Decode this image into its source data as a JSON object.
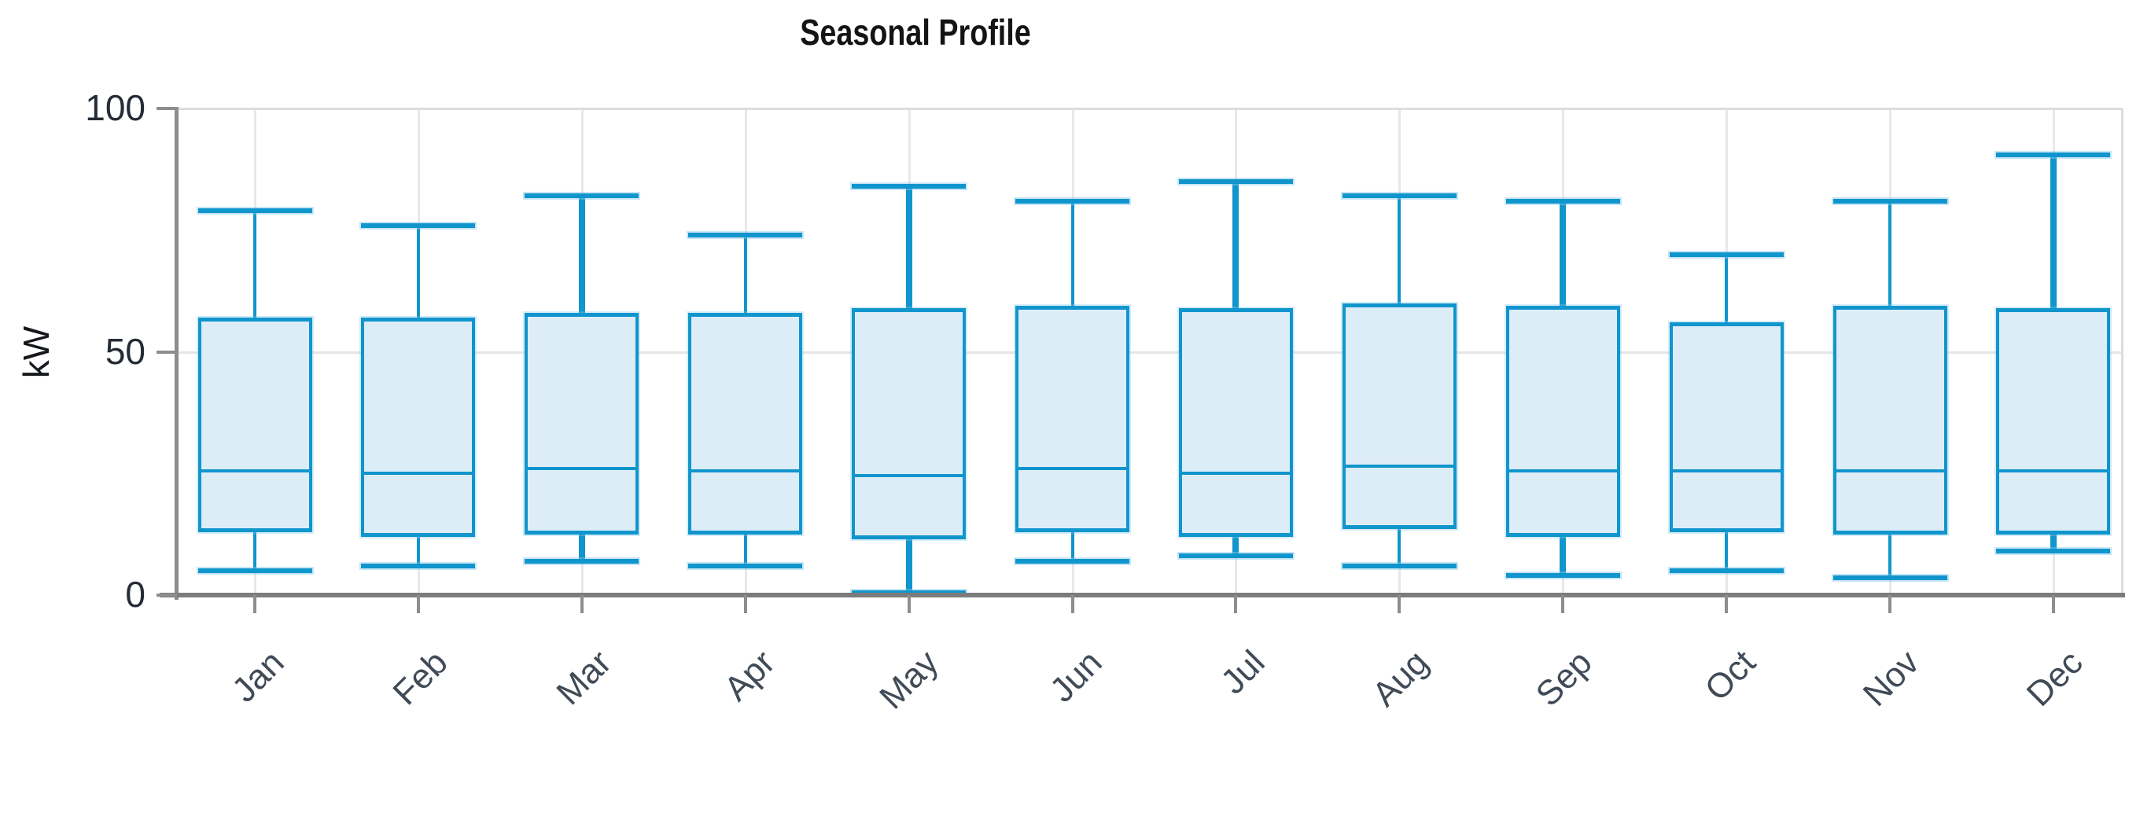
{
  "chart_data": {
    "type": "boxplot",
    "title": "Seasonal Profile",
    "ylabel": "kW",
    "xlabel": "",
    "ylim": [
      0,
      100
    ],
    "y_ticks": [
      0,
      50,
      100
    ],
    "grid": true,
    "legend": "none",
    "categories": [
      "Jan",
      "Feb",
      "Mar",
      "Apr",
      "May",
      "Jun",
      "Jul",
      "Aug",
      "Sep",
      "Oct",
      "Nov",
      "Dec"
    ],
    "boxes": [
      {
        "label": "Jan",
        "min": 5,
        "q1": 13,
        "median": 25.5,
        "q3": 57,
        "max": 79,
        "thick_whisker": false
      },
      {
        "label": "Feb",
        "min": 6,
        "q1": 12,
        "median": 25,
        "q3": 57,
        "max": 76,
        "thick_whisker": false
      },
      {
        "label": "Mar",
        "min": 7,
        "q1": 12.5,
        "median": 26,
        "q3": 58,
        "max": 82,
        "thick_whisker": true
      },
      {
        "label": "Apr",
        "min": 6,
        "q1": 12.5,
        "median": 25.5,
        "q3": 58,
        "max": 74,
        "thick_whisker": false
      },
      {
        "label": "May",
        "min": 0.5,
        "q1": 11.5,
        "median": 24.5,
        "q3": 59,
        "max": 84,
        "thick_whisker": true
      },
      {
        "label": "Jun",
        "min": 7,
        "q1": 13,
        "median": 26,
        "q3": 59.5,
        "max": 81,
        "thick_whisker": false
      },
      {
        "label": "Jul",
        "min": 8,
        "q1": 12,
        "median": 25,
        "q3": 59,
        "max": 85,
        "thick_whisker": true
      },
      {
        "label": "Aug",
        "min": 6,
        "q1": 13.5,
        "median": 26.5,
        "q3": 60,
        "max": 82,
        "thick_whisker": false
      },
      {
        "label": "Sep",
        "min": 4,
        "q1": 12,
        "median": 25.5,
        "q3": 59.5,
        "max": 81,
        "thick_whisker": true
      },
      {
        "label": "Oct",
        "min": 5,
        "q1": 13,
        "median": 25.5,
        "q3": 56,
        "max": 70,
        "thick_whisker": false
      },
      {
        "label": "Nov",
        "min": 3.5,
        "q1": 12.5,
        "median": 25.5,
        "q3": 59.5,
        "max": 81,
        "thick_whisker": false
      },
      {
        "label": "Dec",
        "min": 9,
        "q1": 12.5,
        "median": 25.5,
        "q3": 59,
        "max": 90.5,
        "thick_whisker": true
      }
    ]
  },
  "colors": {
    "box_stroke": "#1095cd",
    "box_fill": "#ddedf7",
    "grid": "#e8e8e8",
    "axis": "#8d8d8d",
    "title_text": "#141414",
    "tick_text": "#262c35",
    "month_text": "#404b57"
  }
}
